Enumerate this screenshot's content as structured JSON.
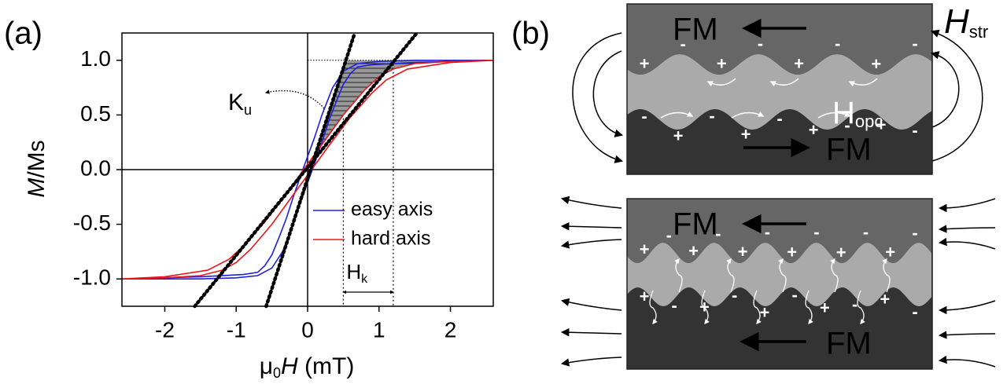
{
  "chart_data": {
    "type": "line",
    "panel_label": "(a)",
    "x_label": [
      "μ",
      "0",
      "H",
      " (mT)"
    ],
    "y_label": [
      "M",
      "/Ms"
    ],
    "xlim": [
      -2.6,
      2.6
    ],
    "ylim": [
      -1.25,
      1.25
    ],
    "xticks": [
      -2,
      -1,
      0,
      1,
      2
    ],
    "yticks": [
      {
        "value": -1,
        "label": "-1.0"
      },
      {
        "value": -0.5,
        "label": "-0.5"
      },
      {
        "value": 0,
        "label": "0.0"
      },
      {
        "value": 0.5,
        "label": "0.5"
      },
      {
        "value": 1,
        "label": "1.0"
      }
    ],
    "series": [
      {
        "name": "easy axis",
        "color": "#1f1fe0",
        "x": [
          2.6,
          1.5,
          1.0,
          0.7,
          0.5,
          0.35,
          0.2,
          0.1,
          0,
          -0.1,
          -0.2,
          -0.3,
          -0.4,
          -0.5,
          -0.6,
          -0.7,
          -0.9,
          -1.5,
          -2.6,
          null,
          -2.6,
          -1.5,
          -1.0,
          -0.7,
          -0.5,
          -0.35,
          -0.2,
          -0.1,
          0,
          0.1,
          0.2,
          0.3,
          0.4,
          0.5,
          0.6,
          0.7,
          0.9,
          1.5,
          2.6
        ],
        "values": [
          1.0,
          1.0,
          0.99,
          0.97,
          0.9,
          0.75,
          0.5,
          0.3,
          0.12,
          -0.06,
          -0.25,
          -0.45,
          -0.62,
          -0.78,
          -0.88,
          -0.94,
          -0.96,
          -0.98,
          -1.0,
          null,
          -1.0,
          -1.0,
          -0.99,
          -0.97,
          -0.9,
          -0.75,
          -0.5,
          -0.3,
          -0.12,
          0.06,
          0.25,
          0.45,
          0.62,
          0.78,
          0.88,
          0.94,
          0.96,
          0.98,
          1.0
        ]
      },
      {
        "name": "hard axis",
        "color": "#e8161b",
        "x": [
          2.6,
          2.0,
          1.5,
          1.2,
          1.0,
          0.8,
          0.5,
          0.2,
          0,
          -0.3,
          -0.6,
          -0.9,
          -1.1,
          -1.4,
          -2.0,
          -2.6,
          null,
          -2.6,
          -2.0,
          -1.5,
          -1.2,
          -1.0,
          -0.8,
          -0.5,
          -0.2,
          0,
          0.3,
          0.6,
          0.9,
          1.1,
          1.4,
          2.0,
          2.6
        ],
        "values": [
          1.0,
          0.99,
          0.97,
          0.92,
          0.85,
          0.73,
          0.5,
          0.23,
          0.05,
          -0.22,
          -0.48,
          -0.7,
          -0.82,
          -0.92,
          -0.98,
          -1.0,
          null,
          -1.0,
          -0.99,
          -0.97,
          -0.92,
          -0.85,
          -0.73,
          -0.5,
          -0.23,
          -0.05,
          0.22,
          0.48,
          0.7,
          0.82,
          0.92,
          0.98,
          1.0
        ]
      }
    ],
    "tangent_lines": [
      {
        "x": [
          -0.58,
          0.66
        ],
        "y": [
          -1.25,
          1.25
        ]
      },
      {
        "x": [
          -1.58,
          1.53
        ],
        "y": [
          -1.25,
          1.25
        ]
      }
    ],
    "saturation_line": 1.0,
    "hk_lines": [
      {
        "x": 0.5,
        "top": 0.47
      },
      {
        "x": 1.2,
        "top": 1.0
      }
    ],
    "ku_label": [
      "K",
      "u"
    ],
    "hk_label": [
      "H",
      "k"
    ]
  },
  "diagram": {
    "panel_label": "(b)",
    "top": {
      "fm_upper": "FM",
      "fm_lower": "FM",
      "h_opc": [
        "H",
        "opc"
      ],
      "h_str": [
        "H",
        "str"
      ],
      "upper_charges": [
        "+",
        "-",
        "+",
        "-",
        "+",
        "-",
        "+",
        "-"
      ],
      "lower_charges": [
        "-",
        "+",
        "-",
        "+",
        "-",
        "+",
        "-",
        "+",
        "-"
      ]
    },
    "bottom": {
      "fm_upper": "FM",
      "fm_lower": "FM",
      "upper_charges": [
        "+",
        "-",
        "+",
        "-",
        "+",
        "-",
        "+",
        "-",
        "+",
        "-",
        "+",
        "-"
      ],
      "lower_charges": [
        "+",
        "-",
        "+",
        "-",
        "+",
        "-",
        "+",
        "-",
        "+",
        "-"
      ]
    }
  }
}
